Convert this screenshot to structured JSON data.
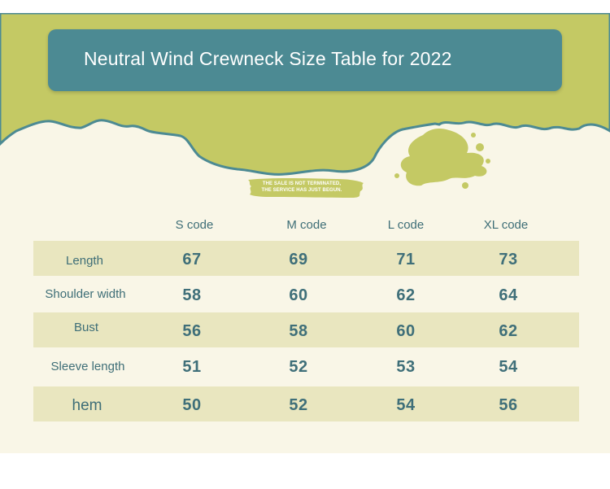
{
  "title": "Neutral Wind Crewneck Size Table for 2022",
  "tagline": {
    "line1": "THE SALE IS NOT TERMINATED,",
    "line2": "THE SERVICE HAS JUST BEGUN."
  },
  "colors": {
    "green": "#c4c964",
    "teal": "#4c8a93",
    "cream": "#f9f6e7",
    "row_shade": "#e9e6bf",
    "text_teal": "#3e6e77"
  },
  "table": {
    "columns": [
      "S code",
      "M code",
      "L code",
      "XL code"
    ],
    "rows": [
      {
        "label": "Length",
        "values": [
          "67",
          "69",
          "71",
          "73"
        ]
      },
      {
        "label": "Shoulder width",
        "values": [
          "58",
          "60",
          "62",
          "64"
        ]
      },
      {
        "label": "Bust",
        "values": [
          "56",
          "58",
          "60",
          "62"
        ]
      },
      {
        "label": "Sleeve length",
        "values": [
          "51",
          "52",
          "53",
          "54"
        ]
      },
      {
        "label": "hem",
        "values": [
          "50",
          "52",
          "54",
          "56"
        ]
      }
    ]
  }
}
